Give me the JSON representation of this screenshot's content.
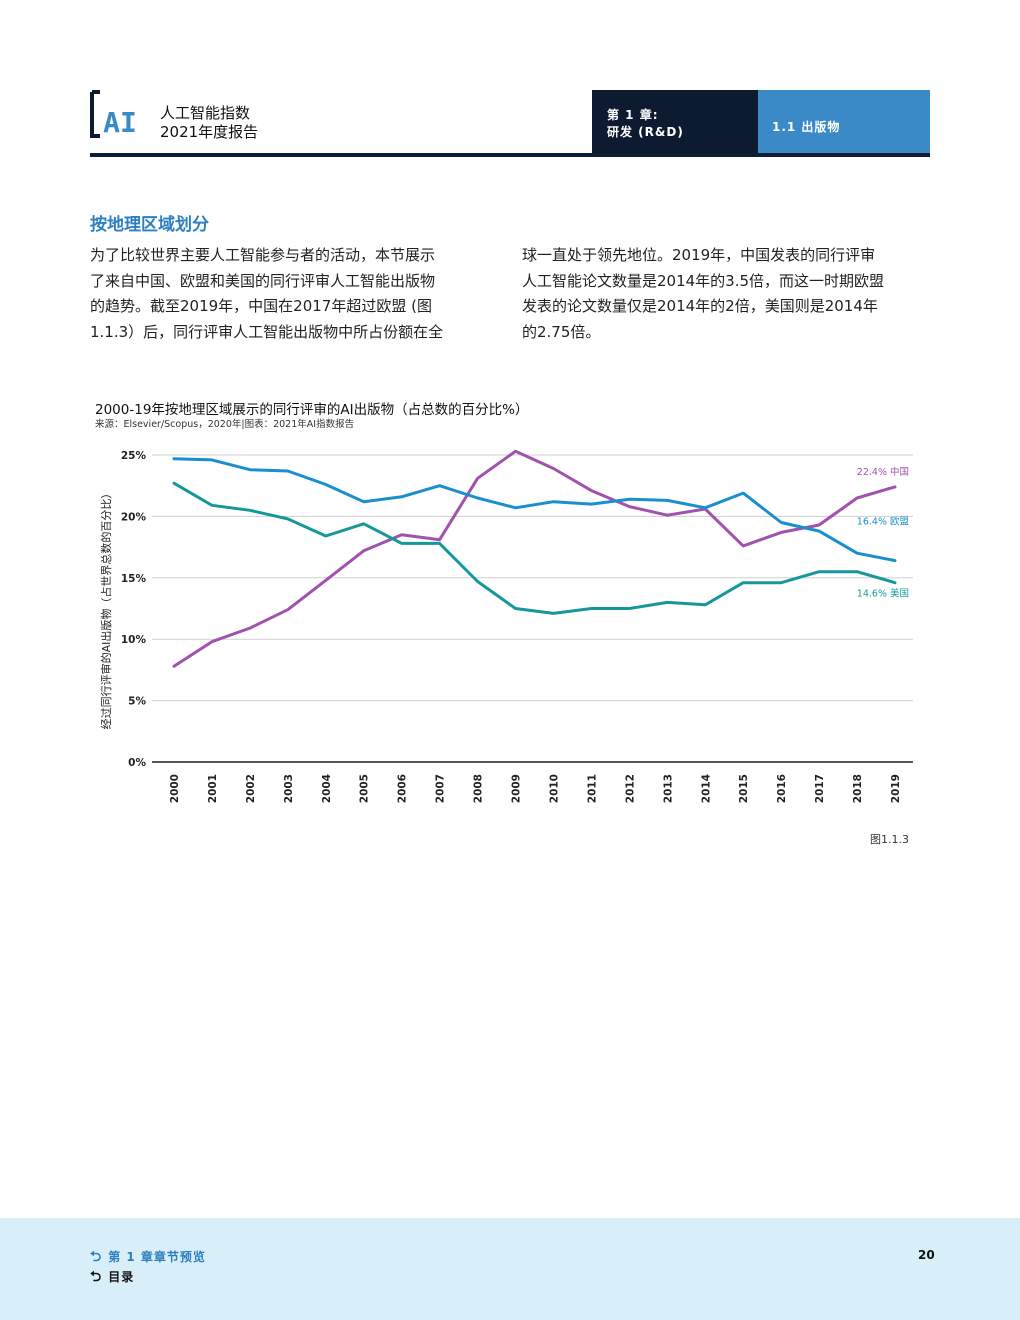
{
  "header": {
    "logo_text": "AI",
    "report_title_line1": "人工智能指数",
    "report_title_line2": "2021年度报告",
    "chapter_line1": "第 1 章:",
    "chapter_line2": "研发 (R&D)",
    "section": "1.1 出版物",
    "colors": {
      "dark": "#0d1b30",
      "accent": "#3a8ac8"
    }
  },
  "body": {
    "section_title": "按地理区域划分",
    "col1": [
      "为了比较世界主要人工智能参与者的活动，本节展示",
      "了来自中国、欧盟和美国的同行评审人工智能出版物",
      "的趋势。截至2019年，中国在2017年超过欧盟 (图",
      "1.1.3）后，同行评审人工智能出版物中所占份额在全"
    ],
    "col2": [
      "球一直处于领先地位。2019年，中国发表的同行评审",
      "人工智能论文数量是2014年的3.5倍，而这一时期欧盟",
      "发表的论文数量仅是2014年的2倍，美国则是2014年",
      "的2.75倍。"
    ]
  },
  "chart_data": {
    "type": "line",
    "title": "2000-19年按地理区域展示的同行评审的AI出版物（占总数的百分比%）",
    "source": "来源：Elsevier/Scopus，2020年|图表：2021年AI指数报告",
    "ylabel": "经过同行评审的AI出版物（占世界总数的百分比）",
    "ylim": [
      0,
      25
    ],
    "yticks": [
      "0%",
      "5%",
      "10%",
      "15%",
      "20%",
      "25%"
    ],
    "x": [
      "2000",
      "2001",
      "2002",
      "2003",
      "2004",
      "2005",
      "2006",
      "2007",
      "2008",
      "2009",
      "2010",
      "2011",
      "2012",
      "2013",
      "2014",
      "2015",
      "2016",
      "2017",
      "2018",
      "2019"
    ],
    "grid": true,
    "series": [
      {
        "name": "中国",
        "end_label": "22.4% 中国",
        "color": "#a052ad",
        "values": [
          7.8,
          9.8,
          10.9,
          12.4,
          14.8,
          17.2,
          18.5,
          18.1,
          23.1,
          25.3,
          23.9,
          22.1,
          20.8,
          20.1,
          20.6,
          17.6,
          18.7,
          19.3,
          21.5,
          22.4
        ]
      },
      {
        "name": "欧盟",
        "end_label": "16.4% 欧盟",
        "color": "#1a8fcf",
        "values": [
          24.7,
          24.6,
          23.8,
          23.7,
          22.6,
          21.2,
          21.6,
          22.5,
          21.5,
          20.7,
          21.2,
          21.0,
          21.4,
          21.3,
          20.7,
          21.9,
          19.5,
          18.8,
          17.0,
          16.4
        ]
      },
      {
        "name": "美国",
        "end_label": "14.6% 美国",
        "color": "#16989b",
        "values": [
          22.7,
          20.9,
          20.5,
          19.8,
          18.4,
          19.4,
          17.8,
          17.8,
          14.7,
          12.5,
          12.1,
          12.5,
          12.5,
          13.0,
          12.8,
          14.6,
          14.6,
          15.5,
          15.5,
          14.6
        ]
      }
    ],
    "figure_label": "图1.1.3"
  },
  "footer": {
    "chapter_preview": "第 1 章章节预览",
    "toc": "目录",
    "page_number": "20",
    "arrow_glyph": "⮌"
  }
}
